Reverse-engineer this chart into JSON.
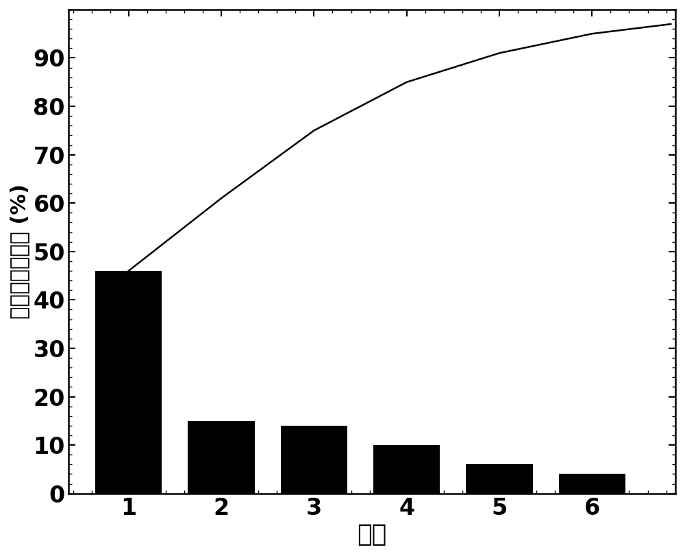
{
  "categories": [
    1,
    2,
    3,
    4,
    5,
    6
  ],
  "bar_values": [
    46.0,
    15.0,
    14.0,
    10.0,
    6.0,
    4.0
  ],
  "cumulative_x": [
    1,
    2,
    3,
    4,
    5,
    6,
    6.85
  ],
  "cumulative_y": [
    46.0,
    61.0,
    75.0,
    85.0,
    91.0,
    95.0,
    97.0
  ],
  "bar_color": "#000000",
  "line_color": "#000000",
  "xlabel": "主元",
  "ylabel": "累计主元贡献率 (%)",
  "ylim": [
    0,
    100
  ],
  "xlim": [
    0.35,
    6.9
  ],
  "yticks": [
    0,
    10,
    20,
    30,
    40,
    50,
    60,
    70,
    80,
    90
  ],
  "xticks": [
    1,
    2,
    3,
    4,
    5,
    6
  ],
  "bar_width": 0.72,
  "xlabel_fontsize": 26,
  "ylabel_fontsize": 22,
  "tick_fontsize": 24,
  "background_color": "#ffffff"
}
